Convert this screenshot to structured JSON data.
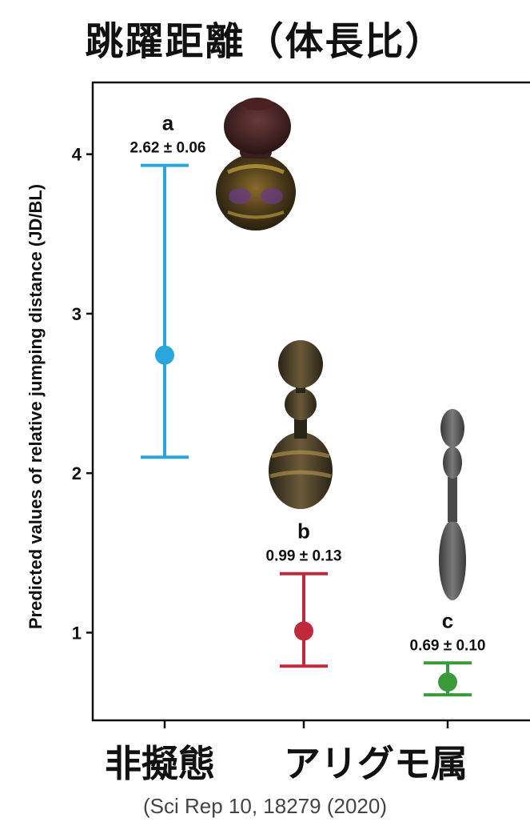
{
  "title": "跳躍距離（体長比）",
  "source": "(Sci Rep 10, 18279 (2020)",
  "chart_data": {
    "type": "scatter",
    "title": "跳躍距離（体長比）",
    "xlabel": "",
    "ylabel": "Predicted values of relative jumping distance (JD/BL)",
    "ylim": [
      0.45,
      4.45
    ],
    "yticks": [
      1,
      2,
      3,
      4
    ],
    "grid": false,
    "categories": [
      "非擬態",
      "アリグモ属",
      ""
    ],
    "category_labels": [
      "非擬態",
      "アリグモ属"
    ],
    "points": [
      {
        "group": "a",
        "label": "2.62 ± 0.06",
        "value": 2.74,
        "lower": 2.1,
        "upper": 3.93,
        "color": "#2aa6dc"
      },
      {
        "group": "b",
        "label": "0.99 ± 0.13",
        "value": 1.01,
        "lower": 0.79,
        "upper": 1.37,
        "color": "#c0283c"
      },
      {
        "group": "c",
        "label": "0.69 ± 0.10",
        "value": 0.69,
        "lower": 0.61,
        "upper": 0.81,
        "color": "#3a9a3a"
      }
    ]
  }
}
